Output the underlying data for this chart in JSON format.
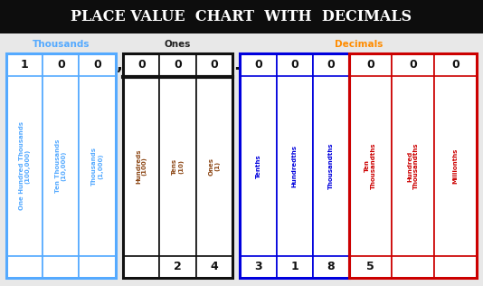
{
  "title": "PLACE VALUE  CHART  WITH  DECIMALS",
  "title_bg": "#0d0d0d",
  "title_color": "#ffffff",
  "title_fontsize": 11.5,
  "bg_color": "#e8e8e8",
  "groups": [
    {
      "label": "Thousands",
      "label_color": "#55aaff",
      "border_color": "#55aaff",
      "col_color": "#55aaff",
      "columns": [
        {
          "name": "One Hundred Thousands\n(100,000)",
          "top_val": "1",
          "bot_val": ""
        },
        {
          "name": "Ten Thousands\n(10,000)",
          "top_val": "0",
          "bot_val": ""
        },
        {
          "name": "Thousands\n(1,000)",
          "top_val": "0",
          "bot_val": ""
        }
      ],
      "sep_after": ","
    },
    {
      "label": "Ones",
      "label_color": "#222222",
      "border_color": "#111111",
      "col_color": "#8B4513",
      "columns": [
        {
          "name": "Hundreds\n(100)",
          "top_val": "0",
          "bot_val": ""
        },
        {
          "name": "Tens\n(10)",
          "top_val": "0",
          "bot_val": "2"
        },
        {
          "name": "Ones\n(1)",
          "top_val": "0",
          "bot_val": "4"
        }
      ],
      "sep_after": "."
    },
    {
      "label": "",
      "label_color": "#0000cc",
      "border_color": "#0000dd",
      "col_color": "#0000dd",
      "columns": [
        {
          "name": "Tenths",
          "top_val": "0",
          "bot_val": "3"
        },
        {
          "name": "Hundredths",
          "top_val": "0",
          "bot_val": "1"
        },
        {
          "name": "Thousandths",
          "top_val": "0",
          "bot_val": "8"
        }
      ],
      "sep_after": ""
    },
    {
      "label": "",
      "label_color": "#cc0000",
      "border_color": "#cc0000",
      "col_color": "#cc0000",
      "columns": [
        {
          "name": "Ten\nThousandths",
          "top_val": "0",
          "bot_val": "5"
        },
        {
          "name": "Hundred\nThousandths",
          "top_val": "0",
          "bot_val": ""
        },
        {
          "name": "Millionths",
          "top_val": "0",
          "bot_val": ""
        }
      ],
      "sep_after": ""
    }
  ],
  "decimals_label": "Decimals",
  "decimals_label_color": "#ff8c00",
  "thousands_label_color": "#55aaff",
  "ones_label_color": "#222222"
}
